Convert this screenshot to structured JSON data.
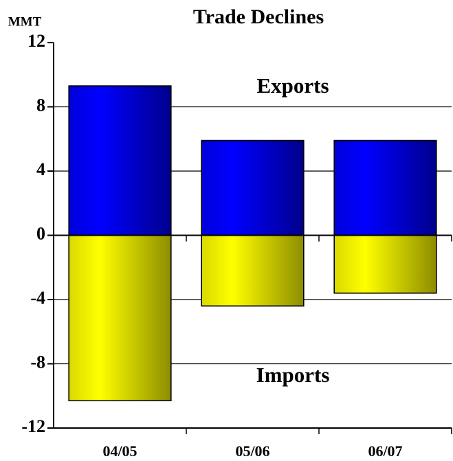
{
  "chart_data": {
    "type": "bar",
    "title": "Trade Declines",
    "y_label": "MMT",
    "categories": [
      "04/05",
      "05/06",
      "06/07"
    ],
    "series": [
      {
        "name": "Exports",
        "color": "#0000ff",
        "values": [
          9.3,
          5.9,
          5.9
        ]
      },
      {
        "name": "Imports",
        "color": "#ffff00",
        "values": [
          -10.3,
          -4.4,
          -3.6
        ]
      }
    ],
    "ylim": [
      -12,
      12
    ],
    "yticks": [
      -12,
      -8,
      -4,
      0,
      4,
      8,
      12
    ],
    "grid": true
  }
}
